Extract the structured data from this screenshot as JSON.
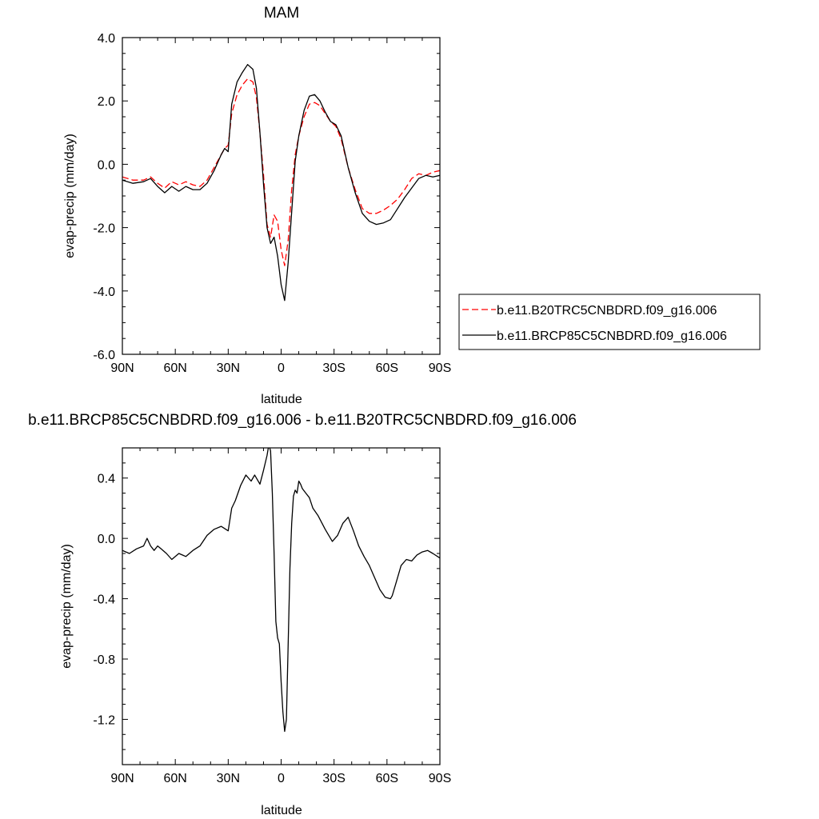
{
  "chart_data": [
    {
      "type": "line",
      "title": "MAM",
      "xlabel": "latitude",
      "ylabel": "evap-precip (mm/day)",
      "xlim": [
        90,
        -90
      ],
      "ylim": [
        -6.0,
        4.0
      ],
      "x_ticks": [
        90,
        60,
        30,
        0,
        -30,
        -60,
        -90
      ],
      "x_tick_labels": [
        "90N",
        "60N",
        "30N",
        "0",
        "30S",
        "60S",
        "90S"
      ],
      "y_ticks": [
        4.0,
        2.0,
        0.0,
        -2.0,
        -4.0,
        -6.0
      ],
      "y_tick_labels": [
        "4.0",
        "2.0",
        "0.0",
        "-2.0",
        "-4.0",
        "-6.0"
      ],
      "grid": false,
      "legend": {
        "placement": "right of plot",
        "entries": [
          "b.e11.B20TRC5CNBDRD.f09_g16.006",
          "b.e11.BRCP85C5CNBDRD.f09_g16.006"
        ]
      },
      "series": [
        {
          "name": "b.e11.B20TRC5CNBDRD.f09_g16.006",
          "color": "#ff0000",
          "dash": "dashed",
          "x": [
            90,
            84,
            78,
            74,
            70,
            66,
            62,
            58,
            54,
            50,
            46,
            42,
            38,
            34,
            32,
            30,
            28,
            25,
            22,
            19,
            16,
            14,
            12,
            10,
            8,
            6,
            4,
            2,
            0,
            -2,
            -4,
            -6,
            -8,
            -10,
            -13,
            -16,
            -19,
            -22,
            -25,
            -28,
            -31,
            -34,
            -38,
            -42,
            -46,
            -50,
            -54,
            -58,
            -62,
            -66,
            -70,
            -74,
            -78,
            -82,
            -86,
            -90
          ],
          "y": [
            -0.4,
            -0.5,
            -0.5,
            -0.4,
            -0.6,
            -0.75,
            -0.55,
            -0.65,
            -0.55,
            -0.65,
            -0.7,
            -0.5,
            -0.1,
            0.3,
            0.5,
            0.6,
            1.6,
            2.2,
            2.5,
            2.7,
            2.6,
            2.1,
            1.0,
            -0.3,
            -1.9,
            -2.3,
            -1.6,
            -1.8,
            -2.7,
            -3.2,
            -2.4,
            -0.8,
            0.3,
            0.9,
            1.5,
            1.9,
            1.95,
            1.85,
            1.6,
            1.35,
            1.2,
            0.8,
            -0.1,
            -0.8,
            -1.4,
            -1.55,
            -1.55,
            -1.45,
            -1.3,
            -1.1,
            -0.8,
            -0.45,
            -0.3,
            -0.35,
            -0.25,
            -0.2
          ]
        },
        {
          "name": "b.e11.BRCP85C5CNBDRD.f09_g16.006",
          "color": "#000000",
          "dash": "solid",
          "x": [
            90,
            84,
            78,
            74,
            70,
            66,
            62,
            58,
            54,
            50,
            46,
            42,
            38,
            34,
            32,
            30,
            28,
            25,
            22,
            19,
            16,
            14,
            12,
            10,
            8,
            6,
            4,
            2,
            0,
            -2,
            -4,
            -6,
            -8,
            -10,
            -13,
            -16,
            -19,
            -22,
            -25,
            -28,
            -31,
            -34,
            -38,
            -42,
            -46,
            -50,
            -54,
            -58,
            -62,
            -66,
            -70,
            -74,
            -78,
            -82,
            -86,
            -90
          ],
          "y": [
            -0.5,
            -0.6,
            -0.55,
            -0.45,
            -0.7,
            -0.9,
            -0.7,
            -0.85,
            -0.7,
            -0.8,
            -0.8,
            -0.6,
            -0.2,
            0.3,
            0.5,
            0.4,
            1.9,
            2.6,
            2.9,
            3.15,
            3.0,
            2.4,
            1.0,
            -0.6,
            -2.0,
            -2.5,
            -2.3,
            -2.9,
            -3.8,
            -4.3,
            -3.1,
            -1.5,
            0.1,
            0.9,
            1.7,
            2.15,
            2.2,
            2.0,
            1.65,
            1.35,
            1.25,
            0.9,
            -0.1,
            -0.9,
            -1.55,
            -1.8,
            -1.9,
            -1.85,
            -1.75,
            -1.4,
            -1.05,
            -0.75,
            -0.45,
            -0.35,
            -0.4,
            -0.35
          ]
        }
      ]
    },
    {
      "type": "line",
      "title": "b.e11.BRCP85C5CNBDRD.f09_g16.006 - b.e11.B20TRC5CNBDRD.f09_g16.006",
      "xlabel": "latitude",
      "ylabel": "evap-precip (mm/day)",
      "xlim": [
        90,
        -90
      ],
      "ylim": [
        -1.5,
        0.6
      ],
      "x_ticks": [
        90,
        60,
        30,
        0,
        -30,
        -60,
        -90
      ],
      "x_tick_labels": [
        "90N",
        "60N",
        "30N",
        "0",
        "30S",
        "60S",
        "90S"
      ],
      "y_ticks": [
        0.4,
        0.0,
        -0.4,
        -0.8,
        -1.2
      ],
      "y_tick_labels": [
        "0.4",
        "0.0",
        "-0.4",
        "-0.8",
        "-1.2"
      ],
      "grid": false,
      "series": [
        {
          "color": "#000000",
          "dash": "solid",
          "x": [
            90,
            86,
            82,
            78,
            76,
            74,
            72,
            70,
            68,
            65,
            62,
            60,
            58,
            56,
            54,
            52,
            50,
            46,
            42,
            38,
            34,
            30,
            28,
            26,
            23,
            20,
            17,
            15,
            12,
            10,
            8,
            7,
            6,
            5,
            4,
            3,
            2,
            1,
            0,
            -1,
            -2,
            -3,
            -4,
            -5,
            -6,
            -7,
            -8,
            -9,
            -10,
            -11,
            -12,
            -14,
            -16,
            -18,
            -21,
            -25,
            -29,
            -32,
            -35,
            -38,
            -41,
            -44,
            -47,
            -50,
            -53,
            -56,
            -59,
            -62,
            -63,
            -65,
            -68,
            -71,
            -74,
            -77,
            -80,
            -83,
            -86,
            -90
          ],
          "y": [
            -0.08,
            -0.1,
            -0.07,
            -0.05,
            0.0,
            -0.05,
            -0.08,
            -0.05,
            -0.07,
            -0.1,
            -0.14,
            -0.12,
            -0.1,
            -0.11,
            -0.12,
            -0.1,
            -0.08,
            -0.05,
            0.02,
            0.06,
            0.08,
            0.05,
            0.2,
            0.25,
            0.35,
            0.42,
            0.38,
            0.42,
            0.36,
            0.45,
            0.55,
            0.62,
            0.58,
            0.3,
            -0.1,
            -0.55,
            -0.66,
            -0.7,
            -0.95,
            -1.15,
            -1.28,
            -1.2,
            -0.7,
            -0.2,
            0.1,
            0.28,
            0.32,
            0.3,
            0.38,
            0.36,
            0.33,
            0.3,
            0.27,
            0.2,
            0.15,
            0.06,
            -0.02,
            0.02,
            0.1,
            0.14,
            0.05,
            -0.05,
            -0.12,
            -0.18,
            -0.26,
            -0.34,
            -0.39,
            -0.4,
            -0.38,
            -0.3,
            -0.18,
            -0.14,
            -0.15,
            -0.11,
            -0.09,
            -0.08,
            -0.1,
            -0.13
          ]
        }
      ]
    }
  ]
}
